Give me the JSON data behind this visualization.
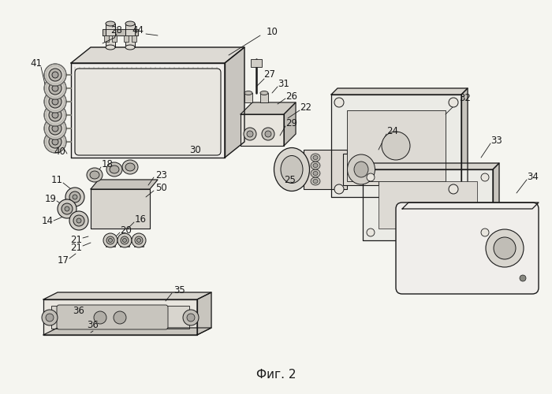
{
  "caption": "Фиг. 2",
  "caption_fontsize": 11,
  "bg_color": "#f5f5f0",
  "line_color": "#1a1a1a",
  "fig_width": 7.0,
  "fig_height": 5.0,
  "dpi": 100
}
